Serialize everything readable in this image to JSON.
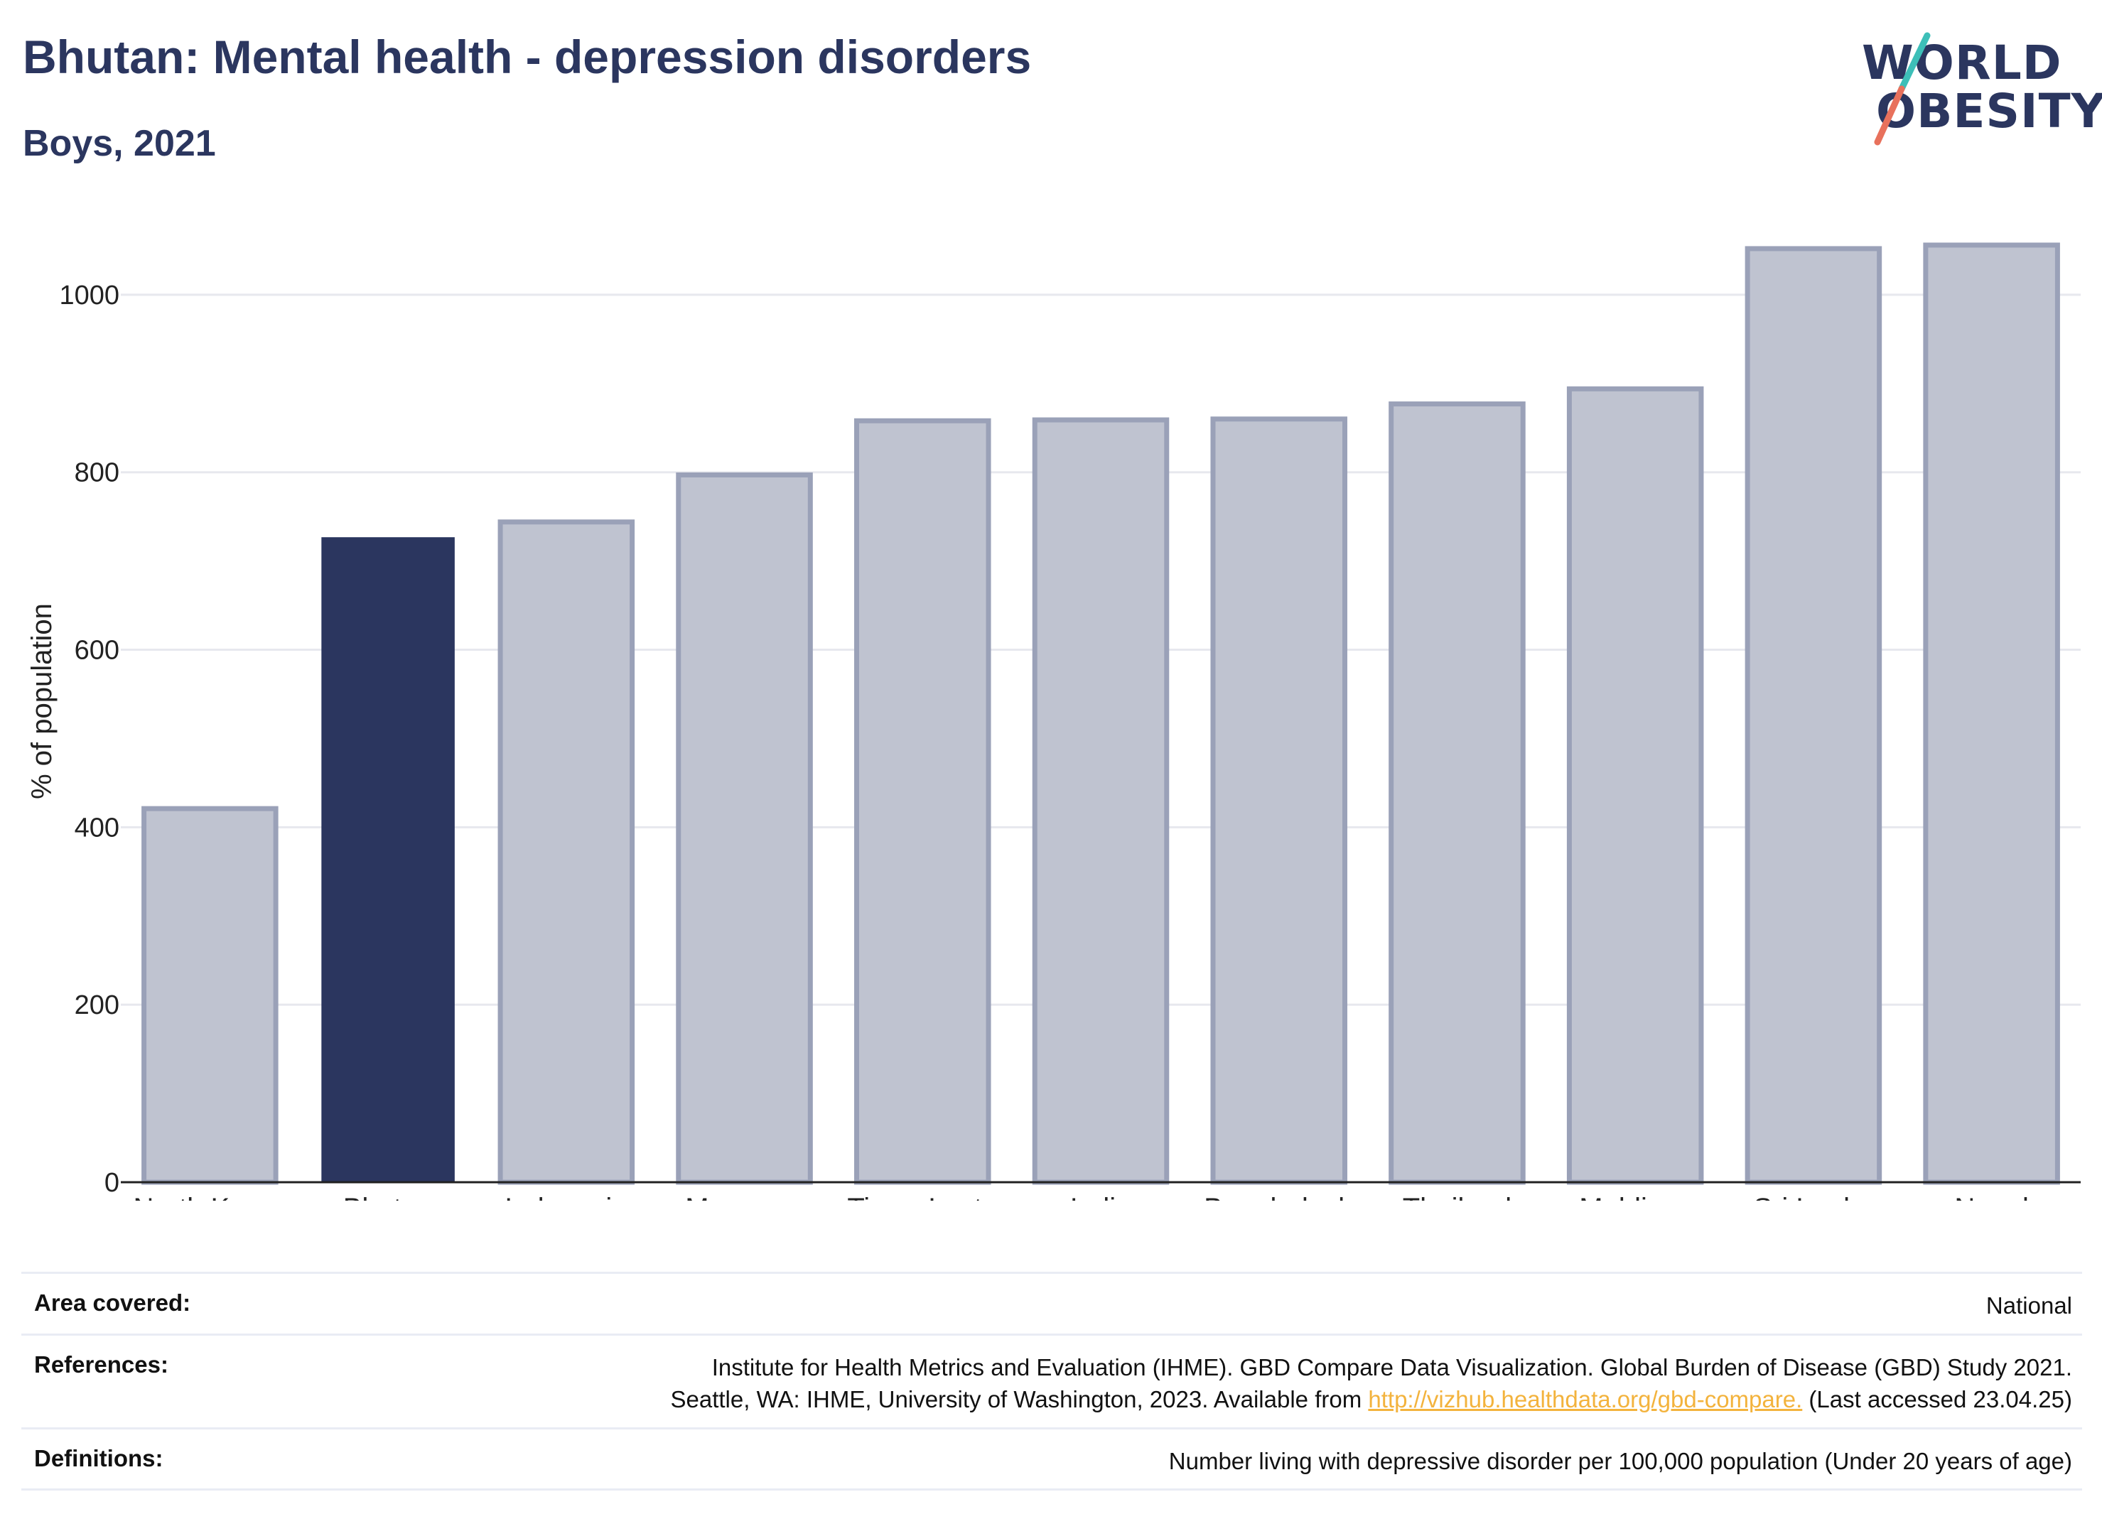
{
  "header": {
    "title": "Bhutan: Mental health - depression disorders",
    "subtitle": "Boys, 2021"
  },
  "logo": {
    "line1": "WORLD",
    "line2": "OBESITY",
    "accent_colors": [
      "#3dbfb8",
      "#e8715c"
    ]
  },
  "colors": {
    "highlight_bar": "#2b365f",
    "other_bar_fill": "#bfc3d0",
    "other_bar_stroke": "#9aa1b8",
    "text": "#2b365f",
    "link": "#f3b33d"
  },
  "chart_data": {
    "type": "bar",
    "title": "",
    "xlabel": "",
    "ylabel": "% of population",
    "ylim": [
      0,
      1100
    ],
    "yticks": [
      0,
      200,
      400,
      600,
      800,
      1000
    ],
    "grid": true,
    "highlight": "Bhutan",
    "categories": [
      "North Korea",
      "Bhutan",
      "Indonesia",
      "Myanmar",
      "Timor-Leste",
      "India",
      "Bangladesh",
      "Thailand",
      "Maldives",
      "Sri Lanka",
      "Nepal"
    ],
    "values": [
      421,
      726,
      744,
      797,
      858,
      859,
      860,
      877,
      894,
      1052,
      1056
    ]
  },
  "footer": {
    "area_label": "Area covered:",
    "area_value": "National",
    "references_label": "References:",
    "references_line1": "Institute for Health Metrics and Evaluation (IHME). GBD Compare Data Visualization. Global Burden of Disease (GBD) Study 2021.",
    "references_line2_pre": "Seattle, WA: IHME, University of Washington, 2023. Available from ",
    "references_link": "http://vizhub.healthdata.org/gbd-compare.",
    "references_line2_post": " (Last accessed 23.04.25)",
    "definitions_label": "Definitions:",
    "definitions_value": "Number living with depressive disorder per 100,000 population (Under 20 years of age)"
  }
}
